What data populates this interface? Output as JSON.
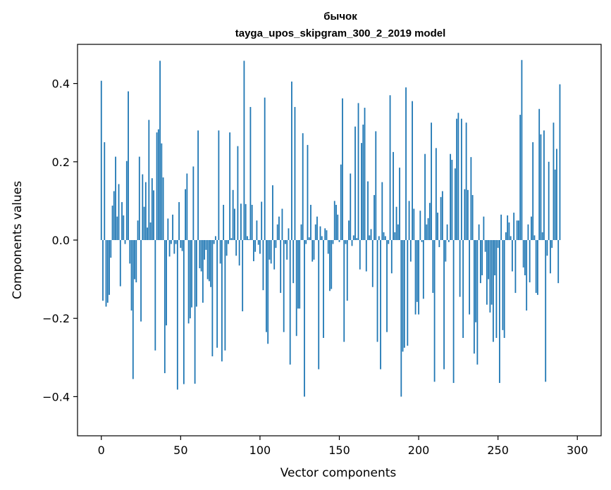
{
  "chart_data": {
    "type": "bar",
    "title": "бычок",
    "subtitle": "tayga_upos_skipgram_300_2_2019 model",
    "xlabel": "Vector components",
    "ylabel": "Components values",
    "xlim": [
      -15,
      315
    ],
    "ylim": [
      -0.5,
      0.5
    ],
    "xticks": [
      0,
      50,
      100,
      150,
      200,
      250,
      300
    ],
    "yticks": [
      -0.4,
      -0.2,
      0.0,
      0.2,
      0.4
    ],
    "ytick_labels": [
      "−0.4",
      "−0.2",
      "0.0",
      "0.2",
      "0.4"
    ],
    "grid": false,
    "bar_color": "#1f77b4",
    "values": [
      0.407,
      -0.155,
      0.25,
      -0.17,
      -0.16,
      -0.14,
      -0.045,
      0.088,
      0.125,
      0.213,
      0.06,
      0.143,
      -0.118,
      0.097,
      0.063,
      -0.01,
      0.202,
      0.38,
      -0.06,
      -0.18,
      -0.355,
      -0.1,
      -0.108,
      0.05,
      0.213,
      -0.208,
      0.168,
      0.085,
      0.148,
      0.032,
      0.307,
      0.045,
      0.158,
      0.127,
      -0.282,
      0.275,
      0.283,
      0.458,
      0.247,
      0.16,
      -0.34,
      -0.218,
      0.055,
      -0.042,
      -0.01,
      0.065,
      -0.035,
      -0.01,
      -0.382,
      0.097,
      -0.02,
      -0.028,
      -0.368,
      0.13,
      0.17,
      -0.213,
      -0.2,
      -0.172,
      0.188,
      -0.367,
      -0.17,
      0.28,
      -0.072,
      -0.08,
      -0.16,
      -0.05,
      -0.025,
      -0.1,
      -0.105,
      -0.12,
      -0.297,
      -0.01,
      0.01,
      -0.275,
      0.28,
      -0.06,
      -0.31,
      0.09,
      -0.282,
      -0.04,
      -0.01,
      0.275,
      0.005,
      0.128,
      0.08,
      -0.04,
      0.24,
      -0.065,
      0.093,
      -0.182,
      0.458,
      0.092,
      0.01,
      0.002,
      0.34,
      0.09,
      -0.054,
      -0.03,
      0.05,
      -0.012,
      -0.035,
      0.098,
      -0.128,
      0.364,
      -0.235,
      -0.265,
      -0.05,
      -0.06,
      0.14,
      -0.075,
      -0.02,
      0.04,
      0.06,
      -0.135,
      0.08,
      -0.235,
      -0.01,
      -0.05,
      0.03,
      -0.318,
      0.405,
      -0.11,
      0.34,
      -0.245,
      -0.175,
      -0.175,
      0.04,
      0.273,
      -0.4,
      -0.01,
      0.243,
      0.007,
      0.09,
      -0.055,
      -0.05,
      0.04,
      0.06,
      -0.33,
      0.035,
      0.01,
      -0.25,
      0.03,
      0.025,
      -0.035,
      -0.13,
      -0.125,
      -0.01,
      0.1,
      0.09,
      0.065,
      -0.005,
      0.193,
      0.362,
      -0.26,
      -0.01,
      -0.155,
      0.05,
      0.17,
      -0.015,
      0.012,
      0.29,
      0.005,
      0.35,
      -0.075,
      0.248,
      0.295,
      0.338,
      -0.08,
      0.15,
      0.012,
      0.028,
      -0.12,
      0.115,
      0.278,
      -0.26,
      0.01,
      -0.33,
      0.148,
      0.02,
      0.01,
      -0.235,
      -0.01,
      0.37,
      -0.085,
      0.225,
      0.02,
      0.085,
      0.04,
      0.185,
      -0.4,
      -0.285,
      -0.275,
      0.39,
      -0.27,
      0.1,
      -0.055,
      0.355,
      0.08,
      -0.19,
      -0.158,
      -0.19,
      0.075,
      -0.005,
      -0.15,
      0.22,
      0.04,
      0.056,
      0.095,
      0.3,
      -0.135,
      -0.362,
      0.235,
      0.07,
      -0.018,
      0.11,
      0.125,
      -0.33,
      -0.055,
      0.04,
      -0.005,
      0.22,
      0.205,
      -0.365,
      0.183,
      0.31,
      0.325,
      -0.145,
      0.31,
      -0.25,
      0.13,
      0.3,
      0.128,
      -0.19,
      0.212,
      0.115,
      -0.29,
      -0.21,
      -0.318,
      0.04,
      -0.11,
      -0.09,
      0.06,
      -0.03,
      -0.165,
      -0.1,
      -0.185,
      -0.165,
      -0.26,
      -0.09,
      -0.25,
      -0.02,
      -0.365,
      0.065,
      -0.23,
      -0.25,
      0.02,
      0.063,
      0.045,
      0.01,
      -0.08,
      0.07,
      -0.135,
      0.05,
      0.05,
      0.32,
      0.46,
      -0.07,
      -0.09,
      -0.18,
      0.04,
      -0.108,
      0.06,
      0.25,
      0.012,
      -0.135,
      -0.14,
      0.335,
      0.27,
      0.02,
      0.28,
      -0.362,
      -0.04,
      0.2,
      -0.085,
      -0.02,
      0.3,
      0.18,
      0.233,
      -0.11,
      0.398
    ]
  }
}
